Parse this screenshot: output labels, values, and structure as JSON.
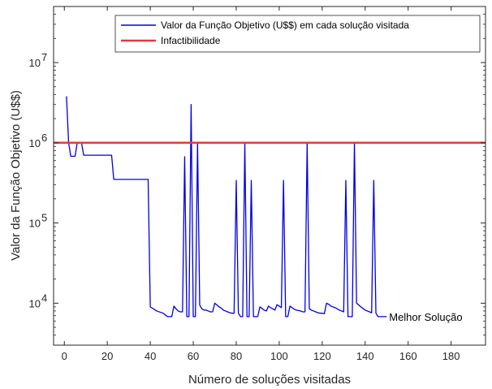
{
  "chart_data": {
    "type": "line",
    "title": "",
    "xlabel": "Número de soluções visitadas",
    "ylabel": "Valor da Função Objetivo (U$$)",
    "xlim": [
      -5,
      196
    ],
    "ylim": [
      3000,
      50000000
    ],
    "yscale": "log",
    "xticks": [
      0,
      20,
      40,
      60,
      80,
      100,
      120,
      140,
      160,
      180
    ],
    "xtick_labels": [
      "0",
      "20",
      "40",
      "60",
      "80",
      "100",
      "120",
      "140",
      "160",
      "180"
    ],
    "yticks": [
      10000,
      100000,
      1000000,
      10000000
    ],
    "ytick_labels": [
      {
        "base": "10",
        "exp": "4"
      },
      {
        "base": "10",
        "exp": "5"
      },
      {
        "base": "10",
        "exp": "6"
      },
      {
        "base": "10",
        "exp": "7"
      }
    ],
    "grid": false,
    "legend_position": "top-right",
    "series": [
      {
        "name": "Valor da Função Objetivo (U$$) em cada solução visitada",
        "color": "#0000e6",
        "x": [
          1,
          2,
          3,
          4,
          5,
          6,
          7,
          8,
          9,
          10,
          14,
          18,
          22,
          23,
          30,
          39,
          40,
          43,
          46,
          48,
          49,
          50,
          51,
          52,
          53,
          54,
          55,
          56,
          57,
          58,
          59,
          60,
          61,
          62,
          63,
          64,
          65,
          66,
          67,
          68,
          69,
          70,
          71,
          72,
          73,
          74,
          75,
          76,
          77,
          78,
          79,
          80,
          81,
          82,
          83,
          84,
          85,
          86,
          87,
          88,
          89,
          90,
          91,
          92,
          93,
          94,
          95,
          96,
          97,
          98,
          99,
          100,
          101,
          102,
          103,
          104,
          105,
          106,
          107,
          108,
          109,
          110,
          111,
          112,
          113,
          114,
          115,
          116,
          117,
          118,
          119,
          120,
          121,
          122,
          123,
          124,
          125,
          126,
          127,
          128,
          129,
          130,
          131,
          132,
          133,
          134,
          135,
          136,
          137,
          138,
          139,
          140,
          141,
          142,
          143,
          144,
          145,
          146,
          147,
          148,
          149,
          150
        ],
        "y": [
          3800000,
          1000000,
          680000,
          680000,
          680000,
          1000000,
          1000000,
          1000000,
          700000,
          700000,
          700000,
          700000,
          700000,
          350000,
          350000,
          350000,
          9000,
          8000,
          7500,
          6800,
          6800,
          6800,
          9200,
          8500,
          8000,
          7800,
          7800,
          670000,
          6800,
          6800,
          3000000,
          6800,
          6800,
          1000000,
          9500,
          8500,
          8200,
          8200,
          8000,
          7800,
          7800,
          10000,
          9500,
          9000,
          8700,
          8200,
          8000,
          7800,
          7600,
          7500,
          7500,
          340000,
          7500,
          6800,
          6800,
          1000000,
          6800,
          6800,
          340000,
          6800,
          6800,
          6800,
          9000,
          8600,
          8200,
          8000,
          9200,
          8800,
          8500,
          8200,
          9600,
          9200,
          8800,
          340000,
          6800,
          6800,
          9200,
          8800,
          8400,
          8200,
          8100,
          8000,
          7800,
          7800,
          1000000,
          8500,
          8200,
          8000,
          7800,
          7600,
          7500,
          7500,
          7400,
          10000,
          9700,
          9200,
          9000,
          8800,
          8500,
          8200,
          8000,
          7800,
          340000,
          6800,
          6800,
          6800,
          1000000,
          10000,
          9500,
          9000,
          8600,
          8200,
          8000,
          7800,
          7600,
          340000,
          7500,
          6800,
          6800,
          6800,
          6800,
          6800
        ]
      },
      {
        "name": "Infactibilidade",
        "color": "#e8383d",
        "x": [
          -5,
          196
        ],
        "y": [
          1000000,
          1000000
        ]
      }
    ],
    "annotations": [
      {
        "text": "Melhor Solução",
        "x": 150,
        "y": 6800
      }
    ]
  }
}
